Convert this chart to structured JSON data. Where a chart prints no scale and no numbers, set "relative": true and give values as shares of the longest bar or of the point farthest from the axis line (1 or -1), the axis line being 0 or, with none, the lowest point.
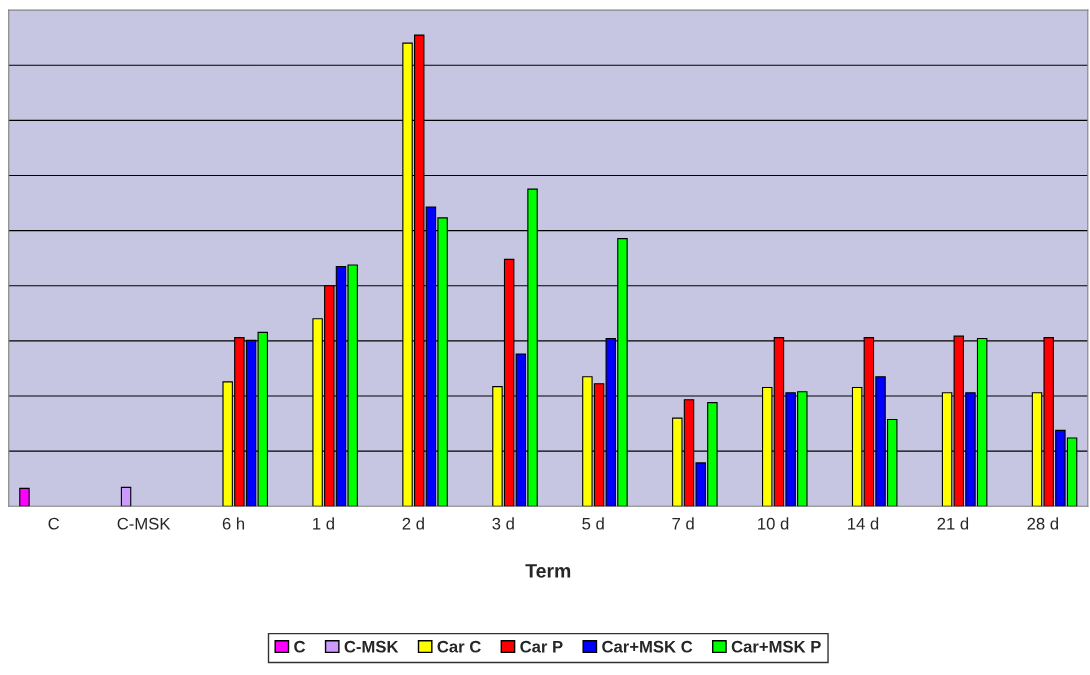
{
  "chart_data": {
    "type": "bar",
    "relative": true,
    "xlabel": "Term",
    "grid": "y",
    "legend": "bottom",
    "categories": [
      "C",
      "C-MSK",
      "6 h",
      "1 d",
      "2 d",
      "3 d",
      "5 d",
      "7 d",
      "10 d",
      "14 d",
      "21 d",
      "28 d"
    ],
    "series": [
      {
        "name": "C",
        "color": "#ff00ff",
        "values": [
          0.038,
          null,
          null,
          null,
          null,
          null,
          null,
          null,
          null,
          null,
          null,
          null
        ]
      },
      {
        "name": "C-MSK",
        "color": "#cc99ff",
        "values": [
          null,
          0.04,
          null,
          null,
          null,
          null,
          null,
          null,
          null,
          null,
          null,
          null
        ]
      },
      {
        "name": "Car C",
        "color": "#ffff00",
        "values": [
          null,
          null,
          0.264,
          0.398,
          0.983,
          0.254,
          0.275,
          0.187,
          0.252,
          0.252,
          0.241,
          0.241
        ]
      },
      {
        "name": "Car P",
        "color": "#ff0000",
        "values": [
          null,
          null,
          0.358,
          0.468,
          1.0,
          0.524,
          0.26,
          0.226,
          0.358,
          0.358,
          0.361,
          0.358
        ]
      },
      {
        "name": "Car+MSK C",
        "color": "#0000ff",
        "values": [
          null,
          null,
          0.352,
          0.509,
          0.635,
          0.323,
          0.356,
          0.092,
          0.241,
          0.275,
          0.241,
          0.161
        ]
      },
      {
        "name": "Car+MSK P",
        "color": "#00ff00",
        "values": [
          null,
          null,
          0.369,
          0.512,
          0.612,
          0.673,
          0.568,
          0.22,
          0.243,
          0.184,
          0.356,
          0.145
        ]
      }
    ]
  }
}
